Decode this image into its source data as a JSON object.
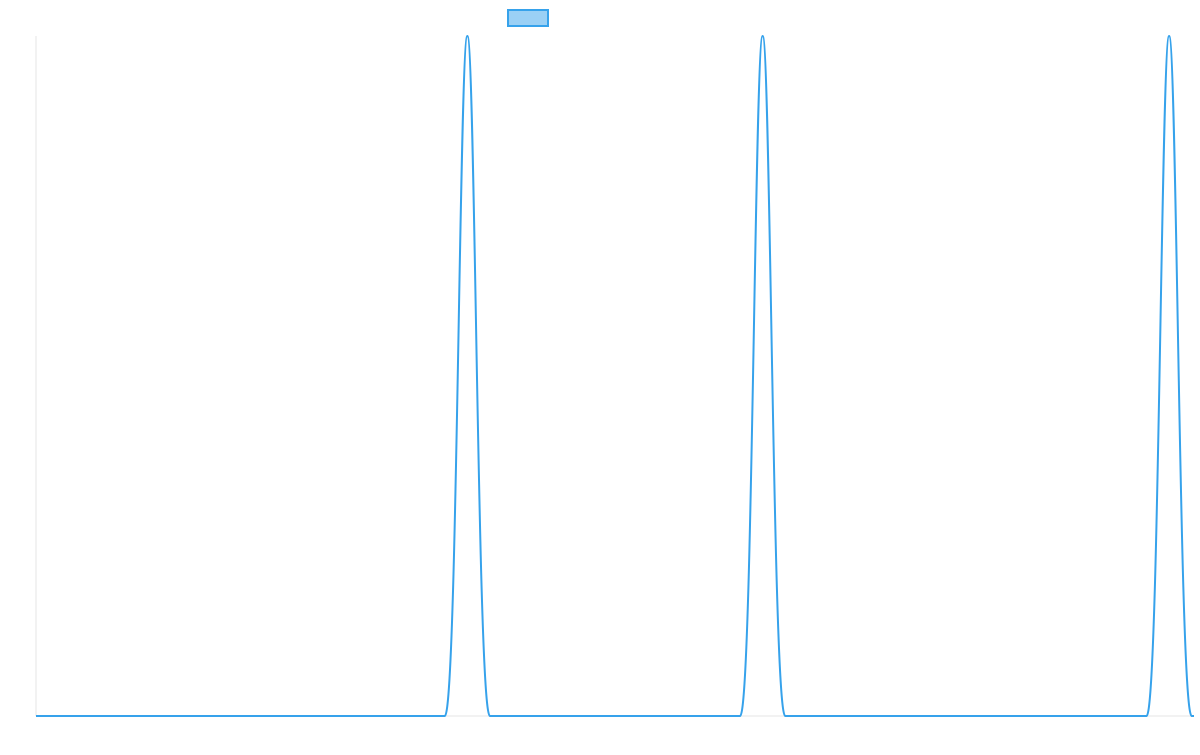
{
  "chart_data": {
    "type": "line",
    "title": "",
    "xlabel": "",
    "ylabel": "",
    "legend": {
      "placement": "top-center",
      "entries": [
        {
          "name": "",
          "color": "#36a2eb",
          "fill": "#9ad0f5"
        }
      ]
    },
    "grid": false,
    "xlim": [
      0,
      100
    ],
    "ylim": [
      0,
      1
    ],
    "series": [
      {
        "name": "",
        "color": "#36a2eb",
        "x": [
          0,
          35.3,
          37.25,
          39.2,
          60.8,
          62.75,
          64.7,
          95.9,
          97.85,
          99.8,
          100
        ],
        "y": [
          0,
          0,
          1,
          0,
          0,
          1,
          0,
          0,
          1,
          0,
          0
        ]
      }
    ]
  }
}
